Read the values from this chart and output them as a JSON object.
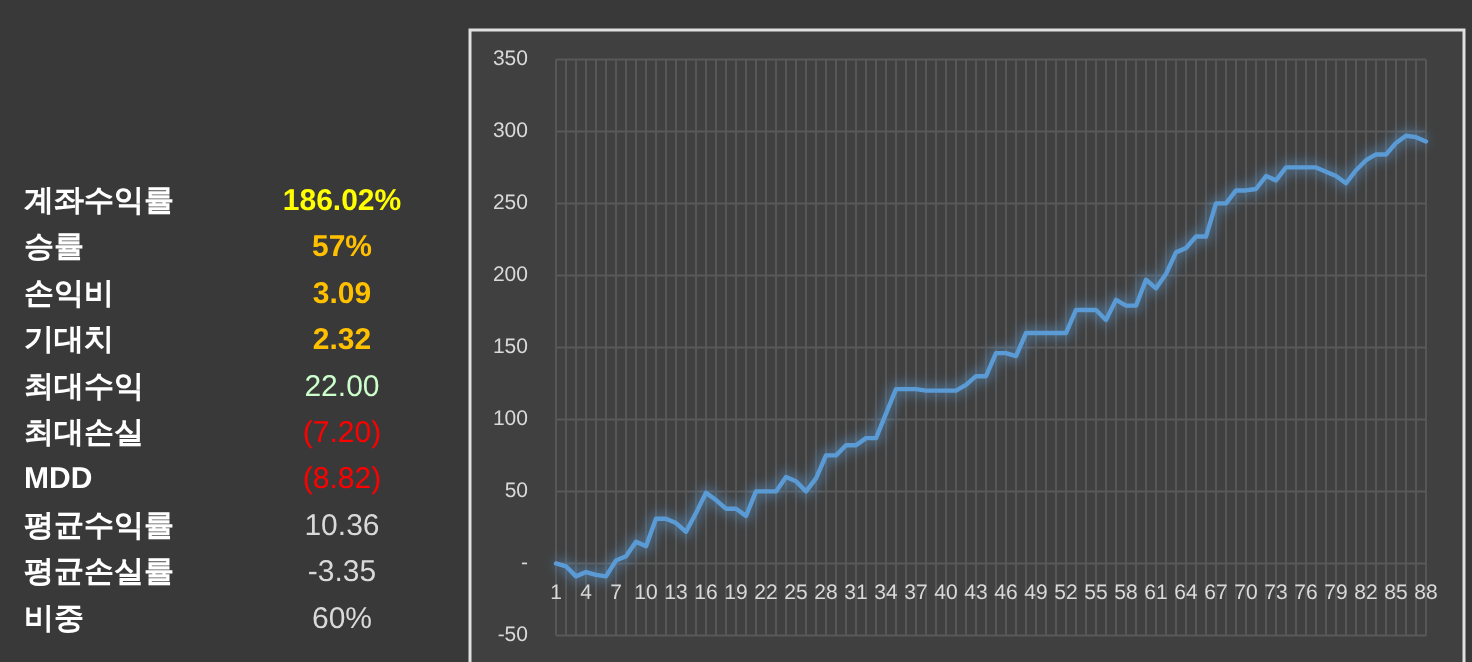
{
  "chart_data": [
    {
      "type": "other",
      "annotations": [
        "계좌수익률",
        "186.02%",
        "승률",
        "57%",
        "손익비",
        "3.09",
        "기대치",
        "2.32",
        "최대수익",
        "22.00",
        "최대손실",
        "(7.20)",
        "MDD",
        "(8.82)",
        "평균수익률",
        "10.36",
        "평균손실률",
        "-3.35",
        "비중",
        "60%"
      ],
      "colors": [
        "#ffffff",
        "#ffff00",
        "#ffffff",
        "#ffc000",
        "#ffffff",
        "#ffc000",
        "#ffffff",
        "#ffc000",
        "#ffffff",
        "#ccffcc",
        "#ffffff",
        "#ff0000",
        "#ffffff",
        "#ff0000",
        "#ffffff",
        "#d9d9d9",
        "#ffffff",
        "#d9d9d9",
        "#ffffff",
        "#d9d9d9"
      ]
    },
    {
      "type": "line",
      "categories": [
        "1",
        null,
        null,
        "4",
        null,
        null,
        "7",
        null,
        null,
        "10",
        null,
        null,
        "13",
        null,
        null,
        "16",
        null,
        null,
        "19",
        null,
        null,
        "22",
        null,
        null,
        "25",
        null,
        null,
        "28",
        null,
        null,
        "31",
        null,
        null,
        "34",
        null,
        null,
        "37",
        null,
        null,
        "40",
        null,
        null,
        "43",
        null,
        null,
        "46",
        null,
        null,
        "49",
        null,
        null,
        "52",
        null,
        null,
        "55",
        null,
        null,
        "58",
        null,
        null,
        "61",
        null,
        null,
        "64",
        null,
        null,
        "67",
        null,
        null,
        "70",
        null,
        null,
        "73",
        null,
        null,
        "76",
        null,
        null,
        "79",
        null,
        null,
        "82",
        null,
        null,
        "85",
        null,
        null,
        "88"
      ],
      "series": [
        {
          "color": "#5b9bd5",
          "values": [
            0,
            -2,
            -9,
            -6,
            -8,
            -9,
            2,
            5,
            15,
            12,
            31,
            31,
            28,
            22,
            35,
            49,
            44,
            38,
            38,
            33,
            50,
            50,
            50,
            60,
            57,
            50,
            59,
            75,
            75,
            82,
            82,
            87,
            87,
            104,
            121,
            121,
            121,
            120,
            120,
            120,
            120,
            124,
            130,
            130,
            146,
            146,
            144,
            160,
            160,
            160,
            160,
            160,
            176,
            176,
            176,
            169,
            183,
            179,
            179,
            197,
            191,
            201,
            216,
            219,
            227,
            227,
            250,
            250,
            259,
            259,
            260,
            269,
            266,
            275,
            275,
            275,
            275,
            272,
            269,
            264,
            273,
            280,
            284,
            284,
            292,
            297,
            296,
            293
          ]
        }
      ],
      "ylim": [
        -50,
        350
      ],
      "yticks": [
        -50,
        {
          "value": 0,
          "label": "-"
        },
        50,
        100,
        150,
        200,
        250,
        300,
        350
      ],
      "grid": true,
      "marker": "none",
      "line_style": "solid"
    }
  ]
}
